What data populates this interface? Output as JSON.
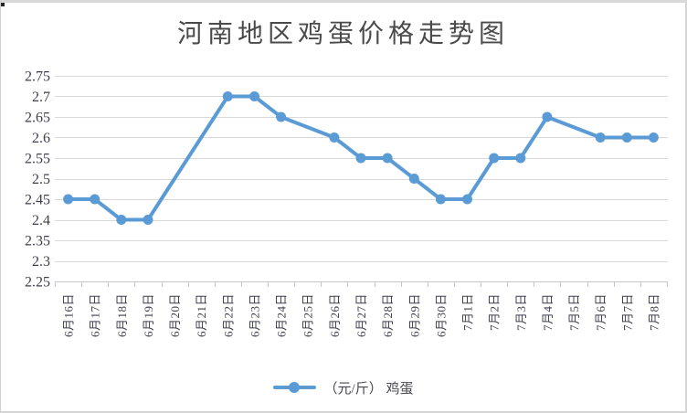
{
  "chart_data": {
    "type": "line",
    "title": "河南地区鸡蛋价格走势图",
    "categories": [
      "6月16日",
      "6月17日",
      "6月18日",
      "6月19日",
      "6月20日",
      "6月21日",
      "6月22日",
      "6月23日",
      "6月24日",
      "6月25日",
      "6月26日",
      "6月27日",
      "6月28日",
      "6月29日",
      "6月30日",
      "7月1日",
      "7月2日",
      "7月3日",
      "7月4日",
      "7月5日",
      "7月6日",
      "7月7日",
      "7月8日"
    ],
    "series": [
      {
        "name": "（元/斤） 鸡蛋",
        "values": [
          2.45,
          2.45,
          2.4,
          2.4,
          null,
          null,
          2.7,
          2.7,
          2.65,
          null,
          2.6,
          2.55,
          2.55,
          2.5,
          2.45,
          2.45,
          2.55,
          2.55,
          2.65,
          null,
          2.6,
          2.6,
          2.6
        ]
      }
    ],
    "ylim": [
      2.25,
      2.75
    ],
    "yticks": [
      "2.25",
      "2.3",
      "2.35",
      "2.4",
      "2.45",
      "2.5",
      "2.55",
      "2.6",
      "2.65",
      "2.7",
      "2.75"
    ],
    "xlabel": "",
    "ylabel": "",
    "grid": "horizontal-only",
    "legend_position": "bottom-center",
    "marker": "circle",
    "connect_missing_points": true
  },
  "style": {
    "line_color": "#5B9BD5",
    "marker_color": "#5B9BD5",
    "grid_color": "#D9D9D9",
    "axis_color": "#C6C6C6",
    "tick_label_color": "#3F3F4C",
    "title_color": "#4A4A4A",
    "background": "#FFFFFF"
  }
}
